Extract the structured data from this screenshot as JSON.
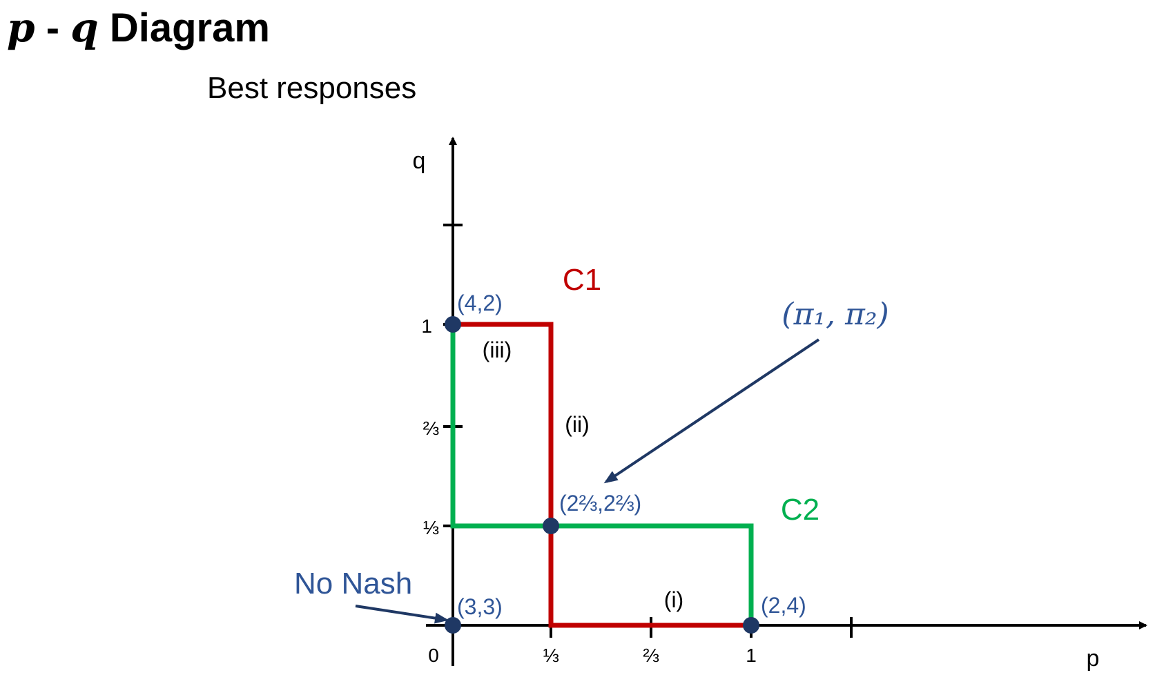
{
  "header": {
    "var_p": "p",
    "dash": "-",
    "var_q": "q",
    "word": "Diagram",
    "subtitle": "Best responses"
  },
  "axes": {
    "x_label": "p",
    "y_label": "q",
    "x_ticks": [
      "0",
      "⅓",
      "⅔",
      "1"
    ],
    "y_ticks": [
      "1",
      "⅔",
      "⅓"
    ]
  },
  "curves": {
    "c1": {
      "label": "C1",
      "color": "#c00000"
    },
    "c2": {
      "label": "C2",
      "color": "#00b050"
    }
  },
  "points": [
    {
      "payoff": "(4,2)"
    },
    {
      "payoff": "(2⅔,2⅔)"
    },
    {
      "payoff": "(3,3)"
    },
    {
      "payoff": "(2,4)"
    }
  ],
  "regions": {
    "i": "(i)",
    "ii": "(ii)",
    "iii": "(iii)"
  },
  "annotations": {
    "no_nash": "No Nash",
    "equilibrium": "(π₁, π₂)"
  },
  "colors": {
    "axis": "#000000",
    "point": "#1f3864",
    "annotation": "#2f5597"
  }
}
